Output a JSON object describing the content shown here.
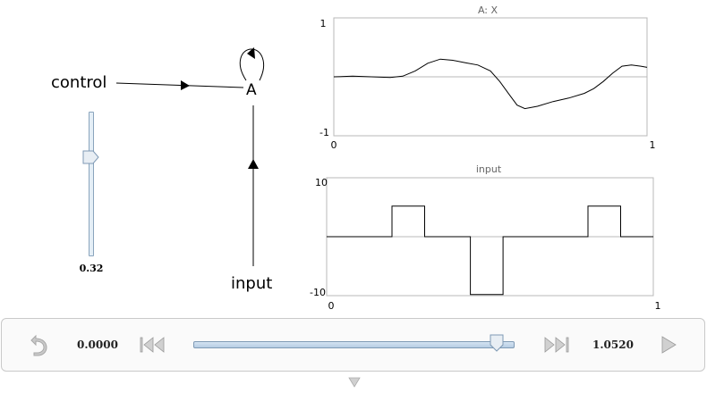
{
  "network": {
    "nodes": {
      "ensemble": {
        "label": "A"
      },
      "control": {
        "label": "control"
      },
      "input": {
        "label": "input"
      }
    }
  },
  "slider": {
    "value_text": "0.32",
    "value": 0.32,
    "min": 0,
    "max": 1
  },
  "plots": {
    "decoded": {
      "title": "A: X",
      "y_max_label": "1",
      "y_min_label": "-1",
      "x_min_label": "0",
      "x_max_label": "1",
      "xlim": [
        0,
        1
      ],
      "ylim": [
        -1,
        1
      ],
      "points": [
        [
          0.0,
          0.0
        ],
        [
          0.06,
          0.01
        ],
        [
          0.12,
          0.0
        ],
        [
          0.18,
          -0.01
        ],
        [
          0.22,
          0.01
        ],
        [
          0.26,
          0.1
        ],
        [
          0.3,
          0.23
        ],
        [
          0.34,
          0.3
        ],
        [
          0.38,
          0.28
        ],
        [
          0.42,
          0.24
        ],
        [
          0.46,
          0.2
        ],
        [
          0.5,
          0.1
        ],
        [
          0.53,
          -0.08
        ],
        [
          0.56,
          -0.3
        ],
        [
          0.585,
          -0.48
        ],
        [
          0.61,
          -0.54
        ],
        [
          0.65,
          -0.5
        ],
        [
          0.7,
          -0.42
        ],
        [
          0.75,
          -0.36
        ],
        [
          0.8,
          -0.28
        ],
        [
          0.83,
          -0.2
        ],
        [
          0.86,
          -0.08
        ],
        [
          0.89,
          0.06
        ],
        [
          0.92,
          0.18
        ],
        [
          0.95,
          0.2
        ],
        [
          0.98,
          0.18
        ],
        [
          1.0,
          0.16
        ]
      ]
    },
    "input": {
      "title": "input",
      "y_max_label": "10",
      "y_min_label": "-10",
      "x_min_label": "0",
      "x_max_label": "1",
      "xlim": [
        0,
        1
      ],
      "ylim": [
        -10,
        10
      ],
      "points": [
        [
          0.0,
          0.0
        ],
        [
          0.2,
          0.0
        ],
        [
          0.2,
          5.2
        ],
        [
          0.3,
          5.2
        ],
        [
          0.3,
          0.0
        ],
        [
          0.44,
          0.0
        ],
        [
          0.44,
          -9.8
        ],
        [
          0.54,
          -9.8
        ],
        [
          0.54,
          0.0
        ],
        [
          0.8,
          0.0
        ],
        [
          0.8,
          5.2
        ],
        [
          0.9,
          5.2
        ],
        [
          0.9,
          0.0
        ],
        [
          1.0,
          0.0
        ]
      ]
    }
  },
  "toolbar": {
    "start_time": "0.0000",
    "end_time": "1.0520",
    "progress": 0.95
  },
  "colors": {
    "accent": "#8aa4bd",
    "track_fill": "#c8d9ea",
    "icon_gray": "#b5b5b5"
  }
}
